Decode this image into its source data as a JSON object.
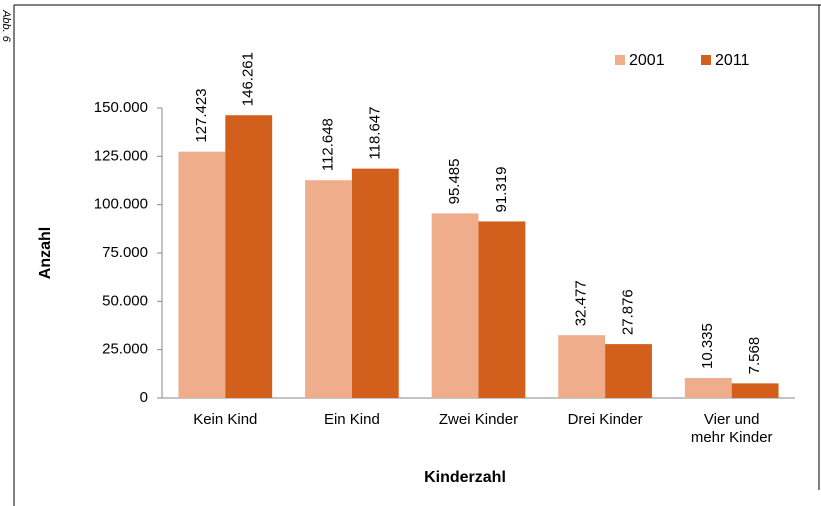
{
  "chart_data": {
    "type": "bar",
    "annotation": "Abb. 6",
    "ylabel": "Anzahl",
    "xlabel": "Kinderzahl",
    "categories": [
      "Kein Kind",
      "Ein Kind",
      "Zwei Kinder",
      "Drei Kinder",
      "Vier und mehr Kinder"
    ],
    "series": [
      {
        "name": "2001",
        "color": "#f0ad8c",
        "values": [
          127423,
          112648,
          95485,
          32477,
          10335
        ],
        "value_labels": [
          "127.423",
          "112.648",
          "95.485",
          "32.477",
          "10.335"
        ]
      },
      {
        "name": "2011",
        "color": "#d2601c",
        "values": [
          146261,
          118647,
          91319,
          27876,
          7568
        ],
        "value_labels": [
          "146.261",
          "118.647",
          "91.319",
          "27.876",
          "7.568"
        ]
      }
    ],
    "ylim": [
      0,
      150000
    ],
    "yticks": [
      0,
      {
        "value": 25000,
        "label": "25.000"
      },
      {
        "value": 50000,
        "label": "50.000"
      },
      {
        "value": 75000,
        "label": "75.000"
      },
      {
        "value": 100000,
        "label": "100.000"
      },
      {
        "value": 125000,
        "label": "125.000"
      },
      {
        "value": 150000,
        "label": "150.000"
      }
    ],
    "grid": false,
    "legend": "upper right"
  }
}
